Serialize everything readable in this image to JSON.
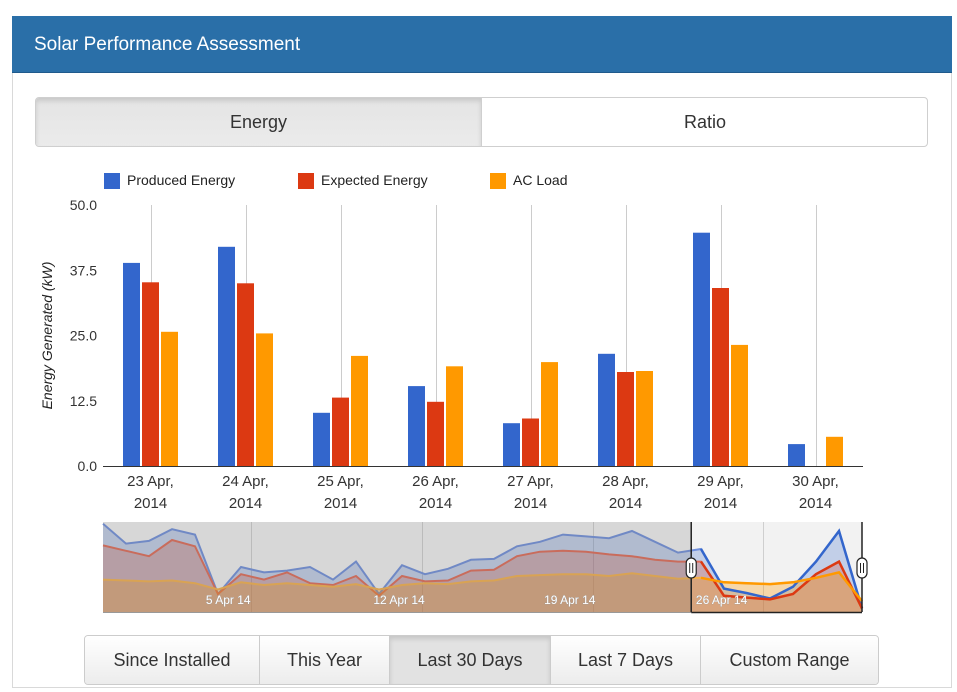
{
  "header": {
    "title": "Solar Performance Assessment"
  },
  "tabs": [
    {
      "label": "Energy",
      "active": true
    },
    {
      "label": "Ratio",
      "active": false
    }
  ],
  "colors": {
    "header_bg": "#2a6fa8",
    "produced": "#3366cc",
    "expected": "#dc3912",
    "ac_load": "#ff9900"
  },
  "chart_data": {
    "type": "bar",
    "ylabel": "Energy Generated (kW)",
    "ylim": [
      0,
      50
    ],
    "yticks": [
      "0.0",
      "12.5",
      "25.0",
      "37.5",
      "50.0"
    ],
    "categories": [
      [
        "23 Apr,",
        "2014"
      ],
      [
        "24 Apr,",
        "2014"
      ],
      [
        "25 Apr,",
        "2014"
      ],
      [
        "26 Apr,",
        "2014"
      ],
      [
        "27 Apr,",
        "2014"
      ],
      [
        "28 Apr,",
        "2014"
      ],
      [
        "29 Apr,",
        "2014"
      ],
      [
        "30 Apr,",
        "2014"
      ]
    ],
    "series": [
      {
        "name": "Produced Energy",
        "color": "#3366cc",
        "values": [
          38.9,
          42.0,
          10.2,
          15.3,
          8.2,
          21.5,
          44.7,
          4.2
        ]
      },
      {
        "name": "Expected Energy",
        "color": "#dc3912",
        "values": [
          35.2,
          35.0,
          13.1,
          12.3,
          9.1,
          18.0,
          34.1,
          0
        ]
      },
      {
        "name": "AC Load",
        "color": "#ff9900",
        "values": [
          25.7,
          25.4,
          21.1,
          19.1,
          19.9,
          18.2,
          23.2,
          5.6
        ]
      }
    ],
    "legend": "top-left",
    "grid": "vertical"
  },
  "navigator": {
    "date_labels": [
      "5 Apr 14",
      "12 Apr 14",
      "19 Apr 14",
      "26 Apr 14"
    ],
    "produced": [
      0.98,
      0.76,
      0.79,
      0.92,
      0.86,
      0.2,
      0.5,
      0.44,
      0.46,
      0.5,
      0.36,
      0.56,
      0.2,
      0.52,
      0.42,
      0.48,
      0.58,
      0.59,
      0.73,
      0.78,
      0.86,
      0.84,
      0.82,
      0.9,
      0.78,
      0.66,
      0.7,
      0.26,
      0.21,
      0.15,
      0.28,
      0.56,
      0.9,
      0.04
    ],
    "expected": [
      0.74,
      0.68,
      0.62,
      0.8,
      0.73,
      0.2,
      0.42,
      0.36,
      0.44,
      0.32,
      0.3,
      0.4,
      0.18,
      0.4,
      0.34,
      0.35,
      0.46,
      0.47,
      0.62,
      0.67,
      0.68,
      0.67,
      0.64,
      0.62,
      0.58,
      0.56,
      0.56,
      0.18,
      0.16,
      0.14,
      0.2,
      0.42,
      0.56,
      0.04
    ],
    "ac_load": [
      0.36,
      0.35,
      0.34,
      0.35,
      0.32,
      0.25,
      0.33,
      0.3,
      0.32,
      0.3,
      0.28,
      0.31,
      0.25,
      0.3,
      0.32,
      0.31,
      0.34,
      0.35,
      0.4,
      0.41,
      0.42,
      0.42,
      0.4,
      0.43,
      0.4,
      0.37,
      0.38,
      0.33,
      0.32,
      0.31,
      0.33,
      0.38,
      0.44,
      0.12
    ],
    "selection": {
      "from_fraction": 0.775,
      "to_fraction": 1.0
    }
  },
  "range_buttons": [
    {
      "label": "Since Installed",
      "active": false
    },
    {
      "label": "This Year",
      "active": false
    },
    {
      "label": "Last 30 Days",
      "active": true
    },
    {
      "label": "Last 7 Days",
      "active": false
    },
    {
      "label": "Custom Range",
      "active": false
    }
  ]
}
